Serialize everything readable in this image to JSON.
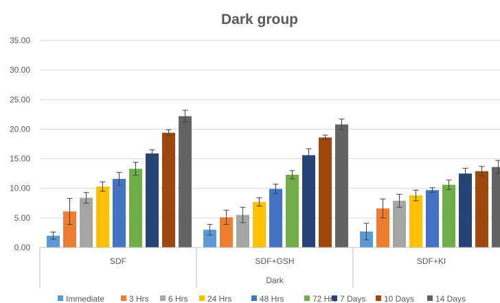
{
  "chart_data": {
    "type": "bar",
    "title": "Dark group",
    "xlabel": "Dark",
    "ylabel": "",
    "ylim": [
      0,
      35
    ],
    "yticks": [
      "0.00",
      "5.00",
      "10.00",
      "15.00",
      "20.00",
      "25.00",
      "30.00",
      "35.00"
    ],
    "grid": true,
    "legend_position": "bottom",
    "categories": [
      "SDF",
      "SDF+GSH",
      "SDF+KI"
    ],
    "series": [
      {
        "name": "Immediate",
        "color": "#5B9BD5",
        "values": [
          2.0,
          3.0,
          2.7
        ],
        "errors": [
          0.6,
          0.9,
          1.4
        ]
      },
      {
        "name": "3 Hrs",
        "color": "#ED7D31",
        "values": [
          6.1,
          5.1,
          6.6
        ],
        "errors": [
          2.2,
          1.2,
          1.6
        ]
      },
      {
        "name": "6 Hrs",
        "color": "#A5A5A5",
        "values": [
          8.4,
          5.5,
          7.9
        ],
        "errors": [
          0.9,
          1.3,
          1.1
        ]
      },
      {
        "name": "24 Hrs",
        "color": "#FFC000",
        "values": [
          10.3,
          7.7,
          8.8
        ],
        "errors": [
          0.8,
          0.7,
          0.9
        ]
      },
      {
        "name": "48 Hrs",
        "color": "#4472C4",
        "values": [
          11.6,
          9.9,
          9.7
        ],
        "errors": [
          1.1,
          0.8,
          0.4
        ]
      },
      {
        "name": "72 Hrs",
        "color": "#70AD47",
        "values": [
          13.3,
          12.3,
          10.6
        ],
        "errors": [
          1.1,
          0.7,
          0.8
        ]
      },
      {
        "name": "7 Days",
        "color": "#264478",
        "values": [
          15.9,
          15.6,
          12.5
        ],
        "errors": [
          0.6,
          1.1,
          0.9
        ]
      },
      {
        "name": "10 Days",
        "color": "#9E480E",
        "values": [
          19.4,
          18.6,
          12.9
        ],
        "errors": [
          0.5,
          0.4,
          0.8
        ]
      },
      {
        "name": "14 Days",
        "color": "#636363",
        "values": [
          22.2,
          20.8,
          13.6
        ],
        "errors": [
          1.0,
          0.9,
          1.1
        ]
      }
    ]
  }
}
